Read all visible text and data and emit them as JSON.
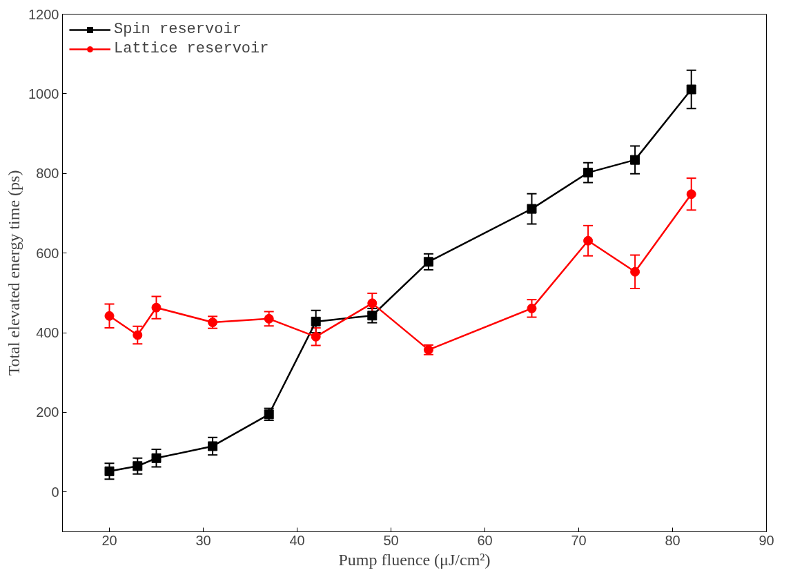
{
  "chart_data": {
    "type": "line",
    "xlabel": "Pump fluence (μJ/cm²)",
    "ylabel": "Total elevated energy time (ps)",
    "x": [
      20,
      23,
      25,
      31,
      37,
      42,
      48,
      54,
      65,
      71,
      76,
      82
    ],
    "series": [
      {
        "name": "Spin reservoir",
        "color": "#000000",
        "marker": "square",
        "values": [
          52,
          65,
          85,
          115,
          195,
          428,
          443,
          578,
          711,
          802,
          834,
          1011
        ],
        "errors": [
          20,
          20,
          22,
          22,
          15,
          28,
          18,
          20,
          38,
          25,
          35,
          48
        ]
      },
      {
        "name": "Lattice reservoir",
        "color": "#ff0000",
        "marker": "circle",
        "values": [
          442,
          394,
          463,
          426,
          435,
          390,
          474,
          357,
          461,
          631,
          553,
          748
        ],
        "errors": [
          30,
          22,
          28,
          15,
          18,
          22,
          25,
          12,
          22,
          38,
          42,
          40
        ]
      }
    ],
    "xlim": [
      15,
      90
    ],
    "xticks": [
      20,
      30,
      40,
      50,
      60,
      70,
      80,
      90
    ],
    "ylim": [
      -100,
      1200
    ],
    "yticks": [
      0,
      200,
      400,
      600,
      800,
      1000,
      1200
    ],
    "grid": false,
    "legend": "top left"
  }
}
